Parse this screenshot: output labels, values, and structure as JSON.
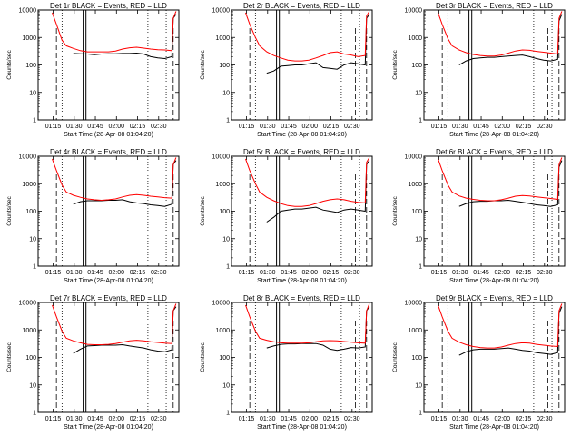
{
  "chart_data": [
    {
      "type": "line",
      "panel": "Det 1r",
      "title": "Det 1r BLACK = Events, RED = LLD",
      "xlabel": "Start Time (28-Apr-08 01:04:20)",
      "ylabel": "Counts/sec",
      "scale": "log",
      "ylim": [
        1,
        10000
      ],
      "yticks": [
        "1",
        "10",
        "100",
        "1000",
        "10000"
      ],
      "xticks": [
        "01:15",
        "01:30",
        "01:45",
        "02:00",
        "02:15",
        "02:30"
      ],
      "x_minutes": [
        10,
        13,
        17,
        20,
        25,
        30,
        35,
        40,
        45,
        50,
        55,
        60,
        65,
        70,
        75,
        80,
        85,
        90,
        95,
        96,
        98
      ],
      "series": [
        {
          "name": "Events",
          "color": "#000000",
          "values": [
            null,
            null,
            null,
            null,
            260,
            255,
            250,
            235,
            250,
            255,
            255,
            260,
            260,
            270,
            250,
            200,
            180,
            170,
            200,
            5000,
            7000
          ]
        },
        {
          "name": "LLD",
          "color": "#ff0000",
          "values": [
            8000,
            3000,
            800,
            500,
            400,
            330,
            300,
            300,
            300,
            300,
            320,
            380,
            420,
            440,
            410,
            380,
            360,
            350,
            330,
            5000,
            9000
          ]
        }
      ]
    },
    {
      "type": "line",
      "panel": "Det 2r",
      "title": "Det 2r BLACK = Events, RED = LLD",
      "xlabel": "Start Time (28-Apr-08 01:04:20)",
      "ylabel": "Counts/sec",
      "scale": "log",
      "ylim": [
        1,
        10000
      ],
      "yticks": [
        "1",
        "10",
        "100",
        "1000",
        "10000"
      ],
      "xticks": [
        "01:15",
        "01:30",
        "01:45",
        "02:00",
        "02:15",
        "02:30"
      ],
      "x_minutes": [
        10,
        13,
        17,
        20,
        25,
        30,
        35,
        40,
        45,
        50,
        55,
        60,
        65,
        70,
        75,
        80,
        85,
        90,
        95,
        96,
        98
      ],
      "series": [
        {
          "name": "Events",
          "color": "#000000",
          "values": [
            null,
            null,
            null,
            null,
            50,
            60,
            90,
            95,
            100,
            100,
            110,
            120,
            80,
            75,
            70,
            100,
            120,
            110,
            100,
            5000,
            7000
          ]
        },
        {
          "name": "LLD",
          "color": "#ff0000",
          "values": [
            8000,
            3000,
            1000,
            500,
            300,
            220,
            180,
            150,
            140,
            140,
            150,
            180,
            220,
            280,
            300,
            250,
            230,
            200,
            220,
            6000,
            9000
          ]
        }
      ]
    },
    {
      "type": "line",
      "panel": "Det 3r",
      "title": "Det 3r BLACK = Events, RED = LLD",
      "xlabel": "Start Time (28-Apr-08 01:04:20)",
      "ylabel": "Counts/sec",
      "scale": "log",
      "ylim": [
        1,
        10000
      ],
      "yticks": [
        "1",
        "10",
        "100",
        "1000",
        "10000"
      ],
      "xticks": [
        "01:15",
        "01:30",
        "01:45",
        "02:00",
        "02:15",
        "02:30"
      ],
      "x_minutes": [
        10,
        13,
        17,
        20,
        25,
        30,
        35,
        40,
        45,
        50,
        55,
        60,
        65,
        70,
        75,
        80,
        85,
        90,
        95,
        96,
        98
      ],
      "series": [
        {
          "name": "Events",
          "color": "#000000",
          "values": [
            null,
            null,
            null,
            null,
            100,
            140,
            170,
            180,
            190,
            190,
            200,
            210,
            220,
            230,
            200,
            170,
            150,
            140,
            160,
            4000,
            7000
          ]
        },
        {
          "name": "LLD",
          "color": "#ff0000",
          "values": [
            8000,
            3000,
            900,
            500,
            350,
            280,
            240,
            220,
            210,
            210,
            230,
            270,
            320,
            350,
            340,
            310,
            290,
            270,
            250,
            5000,
            9000
          ]
        }
      ]
    },
    {
      "type": "line",
      "panel": "Det 4r",
      "title": "Det 4r BLACK = Events, RED = LLD",
      "xlabel": "Start Time (28-Apr-08 01:04:20)",
      "ylabel": "Counts/sec",
      "scale": "log",
      "ylim": [
        1,
        10000
      ],
      "yticks": [
        "1",
        "10",
        "100",
        "1000",
        "10000"
      ],
      "xticks": [
        "01:15",
        "01:30",
        "01:45",
        "02:00",
        "02:15",
        "02:30"
      ],
      "x_minutes": [
        10,
        13,
        17,
        20,
        25,
        30,
        35,
        40,
        45,
        50,
        55,
        60,
        65,
        70,
        75,
        80,
        85,
        90,
        95,
        96,
        98
      ],
      "series": [
        {
          "name": "Events",
          "color": "#000000",
          "values": [
            null,
            null,
            null,
            null,
            180,
            220,
            240,
            240,
            240,
            250,
            250,
            260,
            220,
            200,
            190,
            170,
            160,
            150,
            180,
            5000,
            7000
          ]
        },
        {
          "name": "LLD",
          "color": "#ff0000",
          "values": [
            8000,
            3000,
            900,
            500,
            380,
            320,
            280,
            260,
            250,
            260,
            280,
            330,
            380,
            400,
            380,
            350,
            330,
            310,
            300,
            5000,
            9000
          ]
        }
      ]
    },
    {
      "type": "line",
      "panel": "Det 5r",
      "title": "Det 5r BLACK = Events, RED = LLD",
      "xlabel": "Start Time (28-Apr-08 01:04:20)",
      "ylabel": "Counts/sec",
      "scale": "log",
      "ylim": [
        1,
        10000
      ],
      "yticks": [
        "1",
        "10",
        "100",
        "1000",
        "10000"
      ],
      "xticks": [
        "01:15",
        "01:30",
        "01:45",
        "02:00",
        "02:15",
        "02:30"
      ],
      "x_minutes": [
        10,
        13,
        17,
        20,
        25,
        30,
        35,
        40,
        45,
        50,
        55,
        60,
        65,
        70,
        75,
        80,
        85,
        90,
        95,
        96,
        98
      ],
      "series": [
        {
          "name": "Events",
          "color": "#000000",
          "values": [
            null,
            null,
            null,
            null,
            40,
            60,
            100,
            110,
            120,
            120,
            130,
            140,
            110,
            100,
            90,
            110,
            120,
            110,
            100,
            5000,
            7000
          ]
        },
        {
          "name": "LLD",
          "color": "#ff0000",
          "values": [
            8000,
            3000,
            1000,
            500,
            320,
            240,
            190,
            160,
            150,
            150,
            160,
            190,
            230,
            260,
            280,
            260,
            230,
            210,
            200,
            6000,
            9000
          ]
        }
      ]
    },
    {
      "type": "line",
      "panel": "Det 6r",
      "title": "Det 6r BLACK = Events, RED = LLD",
      "xlabel": "Start Time (28-Apr-08 01:04:20)",
      "ylabel": "Counts/sec",
      "scale": "log",
      "ylim": [
        1,
        10000
      ],
      "yticks": [
        "1",
        "10",
        "100",
        "1000",
        "10000"
      ],
      "xticks": [
        "01:15",
        "01:30",
        "01:45",
        "02:00",
        "02:15",
        "02:30"
      ],
      "x_minutes": [
        10,
        13,
        17,
        20,
        25,
        30,
        35,
        40,
        45,
        50,
        55,
        60,
        65,
        70,
        75,
        80,
        85,
        90,
        95,
        96,
        98
      ],
      "series": [
        {
          "name": "Events",
          "color": "#000000",
          "values": [
            null,
            null,
            null,
            null,
            150,
            190,
            220,
            230,
            230,
            240,
            240,
            250,
            230,
            210,
            190,
            170,
            160,
            150,
            170,
            4000,
            7000
          ]
        },
        {
          "name": "LLD",
          "color": "#ff0000",
          "values": [
            8000,
            3000,
            900,
            500,
            360,
            300,
            270,
            250,
            240,
            240,
            260,
            300,
            350,
            370,
            360,
            330,
            310,
            290,
            270,
            5000,
            9000
          ]
        }
      ]
    },
    {
      "type": "line",
      "panel": "Det 7r",
      "title": "Det 7r BLACK = Events, RED = LLD",
      "xlabel": "Start Time (28-Apr-08 01:04:20)",
      "ylabel": "Counts/sec",
      "scale": "log",
      "ylim": [
        1,
        10000
      ],
      "yticks": [
        "1",
        "10",
        "100",
        "1000",
        "10000"
      ],
      "xticks": [
        "01:15",
        "01:30",
        "01:45",
        "02:00",
        "02:15",
        "02:30"
      ],
      "x_minutes": [
        10,
        13,
        17,
        20,
        25,
        30,
        35,
        40,
        45,
        50,
        55,
        60,
        65,
        70,
        75,
        80,
        85,
        90,
        95,
        96,
        98
      ],
      "series": [
        {
          "name": "Events",
          "color": "#000000",
          "values": [
            null,
            null,
            null,
            null,
            140,
            200,
            260,
            270,
            280,
            280,
            280,
            290,
            260,
            240,
            220,
            190,
            170,
            160,
            190,
            5000,
            7000
          ]
        },
        {
          "name": "LLD",
          "color": "#ff0000",
          "values": [
            8000,
            3000,
            900,
            500,
            400,
            340,
            300,
            290,
            290,
            300,
            320,
            360,
            400,
            420,
            400,
            370,
            350,
            330,
            320,
            5000,
            9000
          ]
        }
      ]
    },
    {
      "type": "line",
      "panel": "Det 8r",
      "title": "Det 8r BLACK = Events, RED = LLD",
      "xlabel": "Start Time (28-Apr-08 01:04:20)",
      "ylabel": "Counts/sec",
      "scale": "log",
      "ylim": [
        1,
        10000
      ],
      "yticks": [
        "1",
        "10",
        "100",
        "1000",
        "10000"
      ],
      "xticks": [
        "01:15",
        "01:30",
        "01:45",
        "02:00",
        "02:15",
        "02:30"
      ],
      "x_minutes": [
        10,
        13,
        17,
        20,
        25,
        30,
        35,
        40,
        45,
        50,
        55,
        60,
        65,
        70,
        75,
        80,
        85,
        90,
        95,
        96,
        98
      ],
      "series": [
        {
          "name": "Events",
          "color": "#000000",
          "values": [
            null,
            null,
            null,
            null,
            220,
            260,
            300,
            310,
            310,
            320,
            320,
            320,
            280,
            200,
            180,
            200,
            230,
            220,
            240,
            5000,
            7000
          ]
        },
        {
          "name": "LLD",
          "color": "#ff0000",
          "values": [
            8000,
            3000,
            900,
            500,
            420,
            370,
            340,
            330,
            330,
            330,
            340,
            370,
            400,
            410,
            400,
            380,
            360,
            340,
            330,
            5000,
            9000
          ]
        }
      ]
    },
    {
      "type": "line",
      "panel": "Det 9r",
      "title": "Det 9r BLACK = Events, RED = LLD",
      "xlabel": "Start Time (28-Apr-08 01:04:20)",
      "ylabel": "Counts/sec",
      "scale": "log",
      "ylim": [
        1,
        10000
      ],
      "yticks": [
        "1",
        "10",
        "100",
        "1000",
        "10000"
      ],
      "xticks": [
        "01:15",
        "01:30",
        "01:45",
        "02:00",
        "02:15",
        "02:30"
      ],
      "x_minutes": [
        10,
        13,
        17,
        20,
        25,
        30,
        35,
        40,
        45,
        50,
        55,
        60,
        65,
        70,
        75,
        80,
        85,
        90,
        95,
        96,
        98
      ],
      "series": [
        {
          "name": "Events",
          "color": "#000000",
          "values": [
            null,
            null,
            null,
            null,
            120,
            160,
            190,
            200,
            200,
            200,
            210,
            220,
            200,
            180,
            170,
            150,
            140,
            130,
            150,
            4000,
            7000
          ]
        },
        {
          "name": "LLD",
          "color": "#ff0000",
          "values": [
            8000,
            3000,
            900,
            500,
            360,
            290,
            250,
            230,
            220,
            220,
            240,
            280,
            320,
            340,
            330,
            300,
            280,
            260,
            250,
            5000,
            9000
          ]
        }
      ]
    }
  ],
  "markers": {
    "dashed_minutes": [
      13,
      88,
      96
    ],
    "dotted_minutes": [
      17,
      78,
      91
    ],
    "solid_minutes": [
      32,
      34
    ]
  }
}
